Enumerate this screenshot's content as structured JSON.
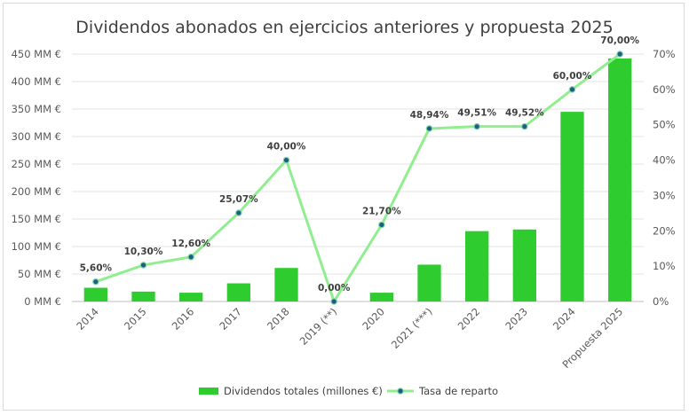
{
  "chart_data": {
    "type": "bar+line",
    "title": "Dividendos abonados en ejercicios anteriores y propuesta 2025",
    "categories": [
      "2014",
      "2015",
      "2016",
      "2017",
      "2018",
      "2019 (**)",
      "2020",
      "2021 (***)",
      "2022",
      "2023",
      "2024",
      "Propuesta 2025"
    ],
    "series": [
      {
        "name": "Dividendos totales (millones €)",
        "kind": "bar",
        "axis": "left",
        "color": "#2ecc2e",
        "values": [
          25,
          18,
          16,
          33,
          61,
          0,
          16,
          67,
          128,
          131,
          345,
          442
        ]
      },
      {
        "name": "Tasa de reparto",
        "kind": "line",
        "axis": "right",
        "color": "#90ee90",
        "marker_color": "#1f5c8a",
        "values": [
          5.6,
          10.3,
          12.6,
          25.07,
          40.0,
          0.0,
          21.7,
          48.94,
          49.51,
          49.52,
          60.0,
          70.0
        ],
        "data_labels": [
          "5,60%",
          "10,30%",
          "12,60%",
          "25,07%",
          "40,00%",
          "0,00%",
          "21,70%",
          "48,94%",
          "49,51%",
          "49,52%",
          "60,00%",
          "70,00%"
        ]
      }
    ],
    "y_left": {
      "ylim": [
        0,
        450
      ],
      "ticks": [
        0,
        50,
        100,
        150,
        200,
        250,
        300,
        350,
        400,
        450
      ],
      "tick_labels": [
        "0 MM €",
        "50 MM €",
        "100 MM €",
        "150 MM €",
        "200 MM €",
        "250 MM €",
        "300 MM €",
        "350 MM €",
        "400 MM €",
        "450 MM €"
      ]
    },
    "y_right": {
      "ylim": [
        0,
        70
      ],
      "ticks": [
        0,
        10,
        20,
        30,
        40,
        50,
        60,
        70
      ],
      "tick_labels": [
        "0%",
        "10%",
        "20%",
        "30%",
        "40%",
        "50%",
        "60%",
        "70%"
      ]
    },
    "grid": true,
    "legend": {
      "position": "bottom",
      "entries": [
        "Dividendos totales (millones €)",
        "Tasa de reparto"
      ]
    }
  }
}
